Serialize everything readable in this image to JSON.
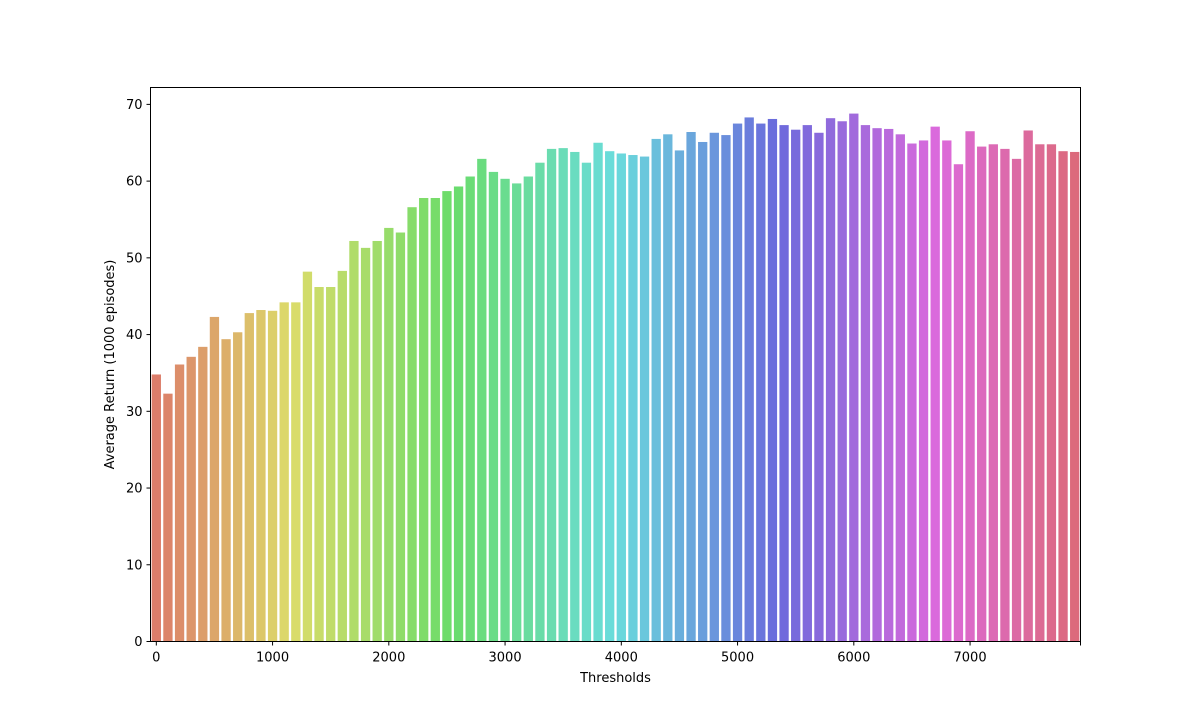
{
  "chart_data": {
    "type": "bar",
    "xlabel": "Thresholds",
    "ylabel": "Average Return (1000 episodes)",
    "ylim": [
      0,
      72.2
    ],
    "y_ticks": [
      0,
      10,
      20,
      30,
      40,
      50,
      60,
      70
    ],
    "x_tick_labels": [
      "0",
      "1000",
      "2000",
      "3000",
      "4000",
      "5000",
      "6000",
      "7000"
    ],
    "grid": false,
    "legend": "none",
    "palette": "husl",
    "categories": [
      0,
      100,
      200,
      300,
      400,
      500,
      600,
      700,
      800,
      900,
      1000,
      1100,
      1200,
      1300,
      1400,
      1500,
      1600,
      1700,
      1800,
      1900,
      2000,
      2100,
      2200,
      2300,
      2400,
      2500,
      2600,
      2700,
      2800,
      2900,
      3000,
      3100,
      3200,
      3300,
      3400,
      3500,
      3600,
      3700,
      3800,
      3900,
      4000,
      4100,
      4200,
      4300,
      4400,
      4500,
      4600,
      4700,
      4800,
      4900,
      5000,
      5100,
      5200,
      5300,
      5400,
      5500,
      5600,
      5700,
      5800,
      5900,
      6000,
      6100,
      6200,
      6300,
      6400,
      6500,
      6600,
      6700,
      6800,
      6900,
      7000,
      7100,
      7200,
      7300,
      7400,
      7500,
      7600,
      7700,
      7800,
      7900
    ],
    "values": [
      34.8,
      32.3,
      36.1,
      37.1,
      38.4,
      42.3,
      39.4,
      40.3,
      42.8,
      43.2,
      43.1,
      44.2,
      44.2,
      48.2,
      46.2,
      46.2,
      48.3,
      52.2,
      51.3,
      52.2,
      53.9,
      53.3,
      56.6,
      57.8,
      57.8,
      58.7,
      59.3,
      60.6,
      62.9,
      61.2,
      60.3,
      59.7,
      60.6,
      62.4,
      64.2,
      64.3,
      63.8,
      62.4,
      65.0,
      63.9,
      63.6,
      63.4,
      63.2,
      65.5,
      66.1,
      64.0,
      66.4,
      65.1,
      66.3,
      66.0,
      67.5,
      68.3,
      67.5,
      68.1,
      67.3,
      66.7,
      67.3,
      66.3,
      68.2,
      67.8,
      68.8,
      67.3,
      66.9,
      66.8,
      66.1,
      64.9,
      65.3,
      67.1,
      65.3,
      62.2,
      66.5,
      64.5,
      64.8,
      64.2,
      62.9,
      66.6,
      64.8,
      64.8,
      63.9,
      63.8
    ]
  }
}
